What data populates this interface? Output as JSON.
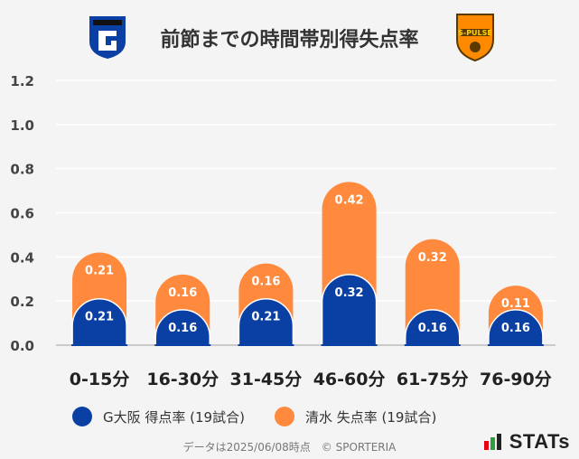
{
  "title": "前節までの時間帯別得失点率",
  "logos": {
    "left": "gamba-osaka-logo",
    "right_text": "S-PULSE"
  },
  "colors": {
    "osaka": "#0a3fa3",
    "shimizu": "#ff8a3d",
    "background": "#f4f4f4"
  },
  "chart_data": {
    "type": "bar",
    "stacked": true,
    "categories": [
      "0-15分",
      "16-30分",
      "31-45分",
      "46-60分",
      "61-75分",
      "76-90分"
    ],
    "series": [
      {
        "name": "G大阪 得点率 (19試合)",
        "values": [
          0.21,
          0.16,
          0.21,
          0.32,
          0.16,
          0.16
        ]
      },
      {
        "name": "清水 失点率 (19試合)",
        "values": [
          0.21,
          0.16,
          0.16,
          0.42,
          0.32,
          0.11
        ]
      }
    ],
    "ylim": [
      0,
      1.2
    ],
    "yticks": [
      "0.0",
      "0.2",
      "0.4",
      "0.6",
      "0.8",
      "1.0",
      "1.2"
    ],
    "grid": true,
    "legend_position": "bottom"
  },
  "footer": "データは2025/06/08時点　© SPORTERIA",
  "brand": "STATs"
}
